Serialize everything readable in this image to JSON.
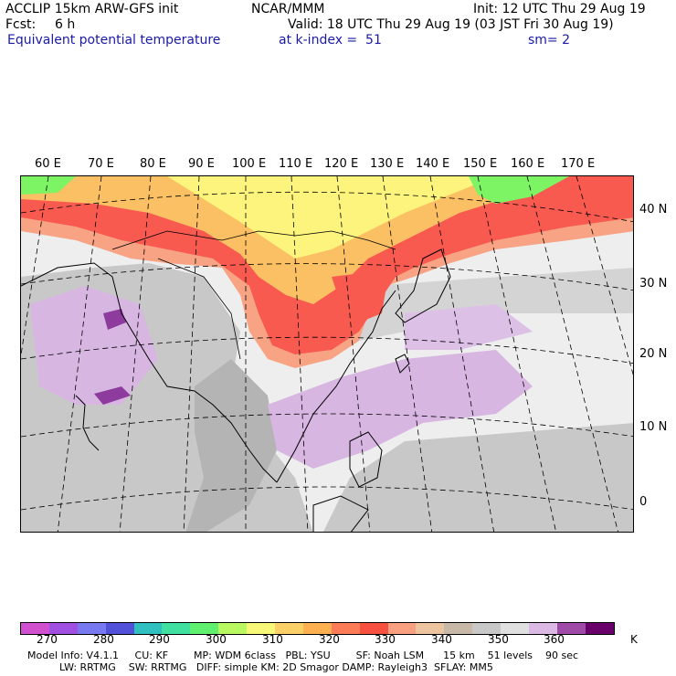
{
  "header": {
    "line1_left": "ACCLIP 15km ARW-GFS init",
    "line1_center": "NCAR/MMM",
    "line1_right": "Init: 12 UTC Thu 29 Aug 19",
    "fcst_label": "Fcst:",
    "fcst_value": "6 h",
    "valid": "Valid: 18 UTC Thu 29 Aug 19 (03 JST Fri 30 Aug 19)",
    "field": "Equivalent potential temperature",
    "level": "at k-index =  51",
    "smoothing": "sm= 2"
  },
  "map": {
    "lon_labels": [
      "60 E",
      "70 E",
      "80 E",
      "90 E",
      "100 E",
      "110 E",
      "120 E",
      "130 E",
      "140 E",
      "150 E",
      "160 E",
      "170 E"
    ],
    "lat_labels": [
      "40 N",
      "30 N",
      "20 N",
      "10 N",
      "0"
    ],
    "colors": {
      "ocean_light": "#eeeeee",
      "grey": "#c8c8c8",
      "grey_dark": "#b4b4b4",
      "lavender": "#d8b6e2",
      "purple": "#8e3b9e",
      "red": "#f85a50",
      "salmon": "#f8a484",
      "orange": "#fcc064",
      "yellow": "#fcf47c",
      "green": "#7cf464"
    }
  },
  "colorbar": {
    "colors": [
      "#d050d0",
      "#a050e0",
      "#7878f0",
      "#5050d8",
      "#30c0c0",
      "#40e0a0",
      "#60f070",
      "#b8f860",
      "#f8f878",
      "#fcd068",
      "#fcb050",
      "#fc7c58",
      "#f85040",
      "#f8a080",
      "#ecc4a0",
      "#c8b8a8",
      "#c8c8c8",
      "#e0e0e0",
      "#dcb8e4",
      "#a04aa8",
      "#6a006a"
    ],
    "ticks": [
      "270",
      "280",
      "290",
      "300",
      "310",
      "320",
      "330",
      "340",
      "350",
      "360"
    ],
    "unit": "K"
  },
  "footer": {
    "line1": "Model Info: V4.1.1     CU: KF        MP: WDM 6class   PBL: YSU        SF: Noah LSM      15 km    51 levels    90 sec",
    "line2": "          LW: RRTMG    SW: RRTMG   DIFF: simple KM: 2D Smagor DAMP: Rayleigh3  SFLAY: MM5"
  }
}
